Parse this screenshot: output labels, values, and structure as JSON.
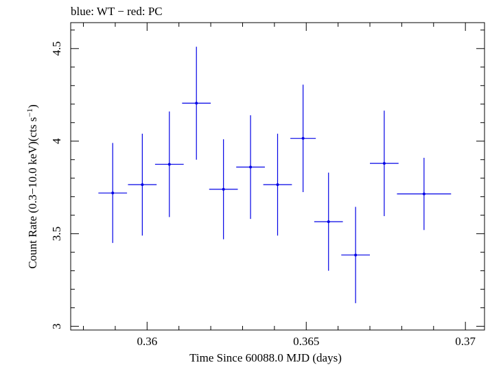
{
  "chart_data": {
    "type": "scatter",
    "title": "blue: WT − red: PC",
    "xlabel": "Time Since 60088.0 MJD (days)",
    "ylabel_main": "Count Rate (0.3−10.0 keV)(cts s",
    "ylabel_sup": "−1",
    "ylabel_close": ")",
    "xlim": [
      0.3576,
      0.3706
    ],
    "ylim": [
      2.98,
      4.64
    ],
    "xticks": [
      0.36,
      0.365,
      0.37
    ],
    "xtick_labels": [
      "0.36",
      "0.365",
      "0.37"
    ],
    "yticks": [
      3,
      3.5,
      4,
      4.5
    ],
    "ytick_labels": [
      "3",
      "3.5",
      "4",
      "4.5"
    ],
    "grid": false,
    "series": [
      {
        "color": "#0000e6",
        "points": [
          {
            "x": 0.35892,
            "y": 3.72,
            "xerr": 0.00045,
            "yerr": 0.27
          },
          {
            "x": 0.35985,
            "y": 3.765,
            "xerr": 0.00045,
            "yerr": 0.275
          },
          {
            "x": 0.3607,
            "y": 3.875,
            "xerr": 0.00045,
            "yerr": 0.285
          },
          {
            "x": 0.36155,
            "y": 4.205,
            "xerr": 0.00045,
            "yerr": 0.305
          },
          {
            "x": 0.3624,
            "y": 3.74,
            "xerr": 0.00045,
            "yerr": 0.27
          },
          {
            "x": 0.36325,
            "y": 3.86,
            "xerr": 0.00045,
            "yerr": 0.28
          },
          {
            "x": 0.3641,
            "y": 3.765,
            "xerr": 0.00045,
            "yerr": 0.275
          },
          {
            "x": 0.3649,
            "y": 4.015,
            "xerr": 0.0004,
            "yerr": 0.29
          },
          {
            "x": 0.3657,
            "y": 3.565,
            "xerr": 0.00045,
            "yerr": 0.265
          },
          {
            "x": 0.36655,
            "y": 3.385,
            "xerr": 0.00045,
            "yerr": 0.26
          },
          {
            "x": 0.36745,
            "y": 3.88,
            "xerr": 0.00045,
            "yerr": 0.285
          },
          {
            "x": 0.3687,
            "y": 3.715,
            "xerr": 0.00085,
            "yerr": 0.195
          }
        ]
      }
    ]
  }
}
